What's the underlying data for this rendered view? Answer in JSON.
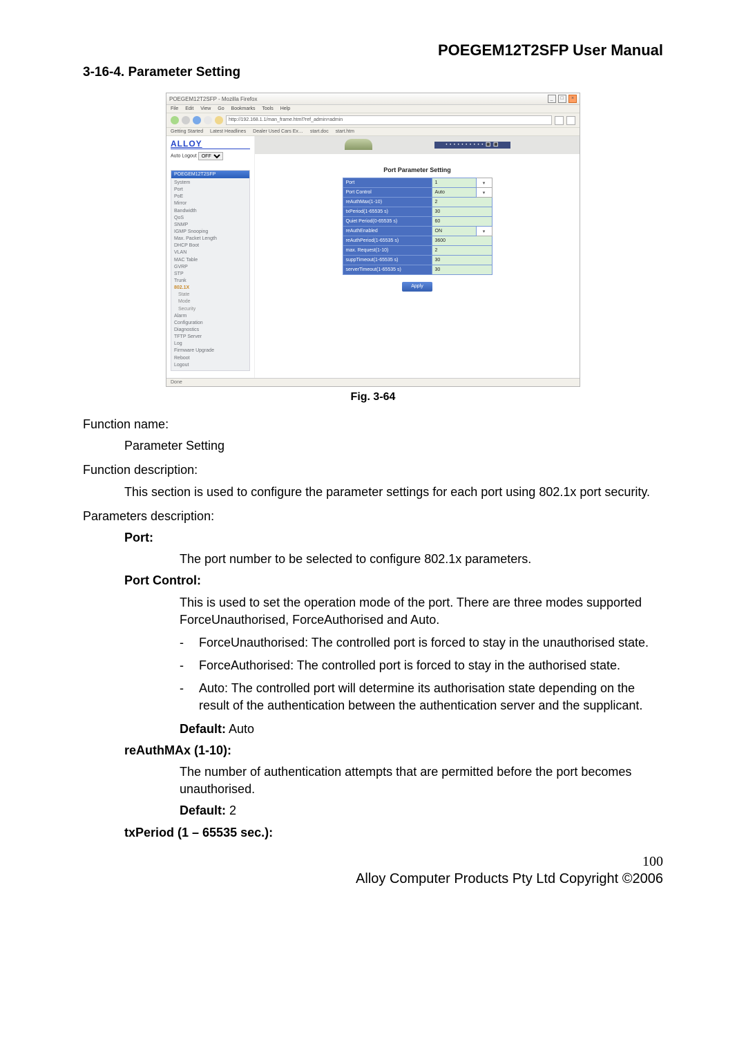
{
  "header": {
    "title": "POEGEM12T2SFP User Manual"
  },
  "section": {
    "num": "3-16-4. Parameter Setting"
  },
  "screenshot": {
    "window_title": "POEGEM12T2SFP - Mozilla Firefox",
    "menus": [
      "File",
      "Edit",
      "View",
      "Go",
      "Bookmarks",
      "Tools",
      "Help"
    ],
    "url": "http://192.168.1.1/man_frame.html?ref_admin=admin",
    "bookmarks": [
      "Getting Started",
      "Latest Headlines",
      "Dealer Used Cars Ex…",
      "start.doc",
      "start.htm"
    ],
    "logo": "ALLOY",
    "autologout_label": "Auto Logout",
    "autologout_value": "OFF",
    "sidebar_title": "POEGEM12T2SFP",
    "sidebar": [
      {
        "label": "System"
      },
      {
        "label": "Port"
      },
      {
        "label": "PoE"
      },
      {
        "label": "Mirror"
      },
      {
        "label": "Bandwidth"
      },
      {
        "label": "QoS"
      },
      {
        "label": "SNMP"
      },
      {
        "label": "IGMP Snooping"
      },
      {
        "label": "Max. Packet Length"
      },
      {
        "label": "DHCP Boot"
      },
      {
        "label": "VLAN"
      },
      {
        "label": "MAC Table"
      },
      {
        "label": "GVRP"
      },
      {
        "label": "STP"
      },
      {
        "label": "Trunk"
      },
      {
        "label": "802.1X",
        "active": true
      },
      {
        "label": "State",
        "sub": true
      },
      {
        "label": "Mode",
        "sub": true
      },
      {
        "label": "Security",
        "sub": true
      },
      {
        "label": "Alarm"
      },
      {
        "label": "Configuration"
      },
      {
        "label": "Diagnostics"
      },
      {
        "label": "TFTP Server"
      },
      {
        "label": "Log"
      },
      {
        "label": "Firmware Upgrade"
      },
      {
        "label": "Reboot"
      },
      {
        "label": "Logout"
      }
    ],
    "strip_text": "• • • • • • • • • • 🔳 🔳",
    "main_title": "Port Parameter Setting",
    "rows": [
      {
        "label": "Port",
        "value": "1",
        "select": true
      },
      {
        "label": "Port Control",
        "value": "Auto",
        "select": true
      },
      {
        "label": "reAuthMax(1-10)",
        "value": "2"
      },
      {
        "label": "txPeriod(1-65535 s)",
        "value": "30"
      },
      {
        "label": "Quiet Period(0-65535 s)",
        "value": "60"
      },
      {
        "label": "reAuthEnabled",
        "value": "ON",
        "select": true
      },
      {
        "label": "reAuthPeriod(1-65535 s)",
        "value": "3600"
      },
      {
        "label": "max. Request(1-10)",
        "value": "2"
      },
      {
        "label": "suppTimeout(1-65535 s)",
        "value": "30"
      },
      {
        "label": "serverTimeout(1-65535 s)",
        "value": "30"
      }
    ],
    "apply": "Apply",
    "status": "Done"
  },
  "fig": "Fig. 3-64",
  "body": {
    "fn_name_label": "Function name:",
    "fn_name": "Parameter Setting",
    "fn_desc_label": "Function description:",
    "fn_desc": "This section is used to configure the parameter settings for each port using 802.1x port security.",
    "params_label": "Parameters description:",
    "port_h": "Port:",
    "port_t": "The port number to be selected to configure 802.1x parameters.",
    "pc_h": "Port Control:",
    "pc_t": "This is used to set the operation mode of the port. There are three modes supported ForceUnauthorised, ForceAuthorised and Auto.",
    "pc_li1": "ForceUnauthorised: The controlled port is forced to stay in the unauthorised state.",
    "pc_li2": "ForceAuthorised: The controlled port is forced to stay in the authorised state.",
    "pc_li3": "Auto: The controlled port will determine its authorisation state depending on the result of the authentication between the authentication server and the supplicant.",
    "pc_def_l": "Default:",
    "pc_def_v": " Auto",
    "ram_h": "reAuthMAx (1-10):",
    "ram_t": "The number of authentication attempts that are permitted before the port becomes unauthorised.",
    "ram_def_l": "Default:",
    "ram_def_v": " 2",
    "txp_h": "txPeriod (1 – 65535 sec.):"
  },
  "page_number": "100",
  "copyright": "Alloy Computer Products Pty Ltd Copyright ©2006"
}
